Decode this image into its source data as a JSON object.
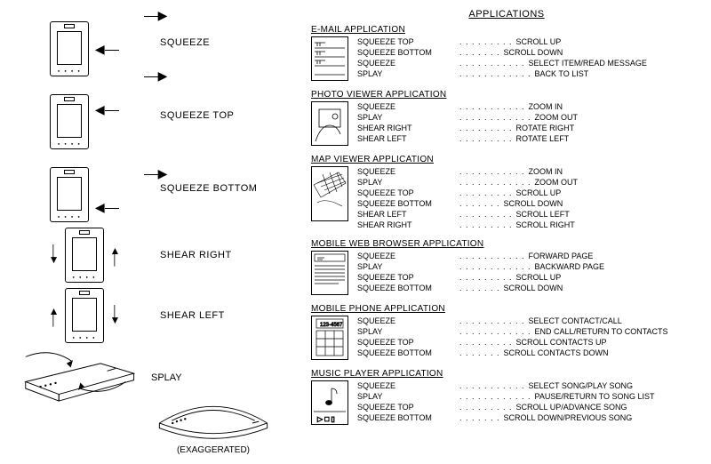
{
  "gestures": {
    "squeeze": "SQUEEZE",
    "squeeze_top": "SQUEEZE TOP",
    "squeeze_bottom": "SQUEEZE BOTTOM",
    "shear_right": "SHEAR RIGHT",
    "shear_left": "SHEAR LEFT",
    "splay": "SPLAY",
    "exaggerated": "(EXAGGERATED)"
  },
  "apps_title": "APPLICATIONS",
  "apps": {
    "email": {
      "title": "E-MAIL APPLICATION",
      "rows": [
        {
          "g": "SQUEEZE TOP",
          "a": "SCROLL UP"
        },
        {
          "g": "SQUEEZE BOTTOM",
          "a": "SCROLL DOWN"
        },
        {
          "g": "SQUEEZE",
          "a": "SELECT ITEM/READ MESSAGE"
        },
        {
          "g": "SPLAY",
          "a": "BACK TO LIST"
        }
      ]
    },
    "photo": {
      "title": "PHOTO VIEWER APPLICATION",
      "rows": [
        {
          "g": "SQUEEZE",
          "a": "ZOOM IN"
        },
        {
          "g": "SPLAY",
          "a": "ZOOM OUT"
        },
        {
          "g": "SHEAR RIGHT",
          "a": "ROTATE RIGHT"
        },
        {
          "g": "SHEAR LEFT",
          "a": "ROTATE LEFT"
        }
      ]
    },
    "map": {
      "title": "MAP VIEWER APPLICATION",
      "rows": [
        {
          "g": "SQUEEZE",
          "a": "ZOOM IN"
        },
        {
          "g": "SPLAY",
          "a": "ZOOM OUT"
        },
        {
          "g": "SQUEEZE TOP",
          "a": "SCROLL UP"
        },
        {
          "g": "SQUEEZE BOTTOM",
          "a": "SCROLL DOWN"
        },
        {
          "g": "SHEAR LEFT",
          "a": "SCROLL LEFT"
        },
        {
          "g": "SHEAR RIGHT",
          "a": "SCROLL RIGHT"
        }
      ]
    },
    "web": {
      "title": "MOBILE WEB BROWSER APPLICATION",
      "rows": [
        {
          "g": "SQUEEZE",
          "a": "FORWARD PAGE"
        },
        {
          "g": "SPLAY",
          "a": "BACKWARD PAGE"
        },
        {
          "g": "SQUEEZE TOP",
          "a": "SCROLL UP"
        },
        {
          "g": "SQUEEZE BOTTOM",
          "a": "SCROLL DOWN"
        }
      ]
    },
    "phone": {
      "title": "MOBILE PHONE APPLICATION",
      "phone_num": "123-4567",
      "rows": [
        {
          "g": "SQUEEZE",
          "a": "SELECT CONTACT/CALL"
        },
        {
          "g": "SPLAY",
          "a": "END CALL/RETURN TO CONTACTS"
        },
        {
          "g": "SQUEEZE TOP",
          "a": "SCROLL CONTACTS UP"
        },
        {
          "g": "SQUEEZE BOTTOM",
          "a": "SCROLL CONTACTS DOWN"
        }
      ]
    },
    "music": {
      "title": "MUSIC PLAYER APPLICATION",
      "rows": [
        {
          "g": "SQUEEZE",
          "a": "SELECT SONG/PLAY SONG"
        },
        {
          "g": "SPLAY",
          "a": "PAUSE/RETURN TO SONG LIST"
        },
        {
          "g": "SQUEEZE TOP",
          "a": "SCROLL UP/ADVANCE SONG"
        },
        {
          "g": "SQUEEZE BOTTOM",
          "a": "SCROLL DOWN/PREVIOUS SONG"
        }
      ]
    }
  },
  "style": {
    "dot_char": ". . . . . . . . . . . . . . .",
    "colors": {
      "fg": "#000000",
      "bg": "#ffffff"
    }
  }
}
